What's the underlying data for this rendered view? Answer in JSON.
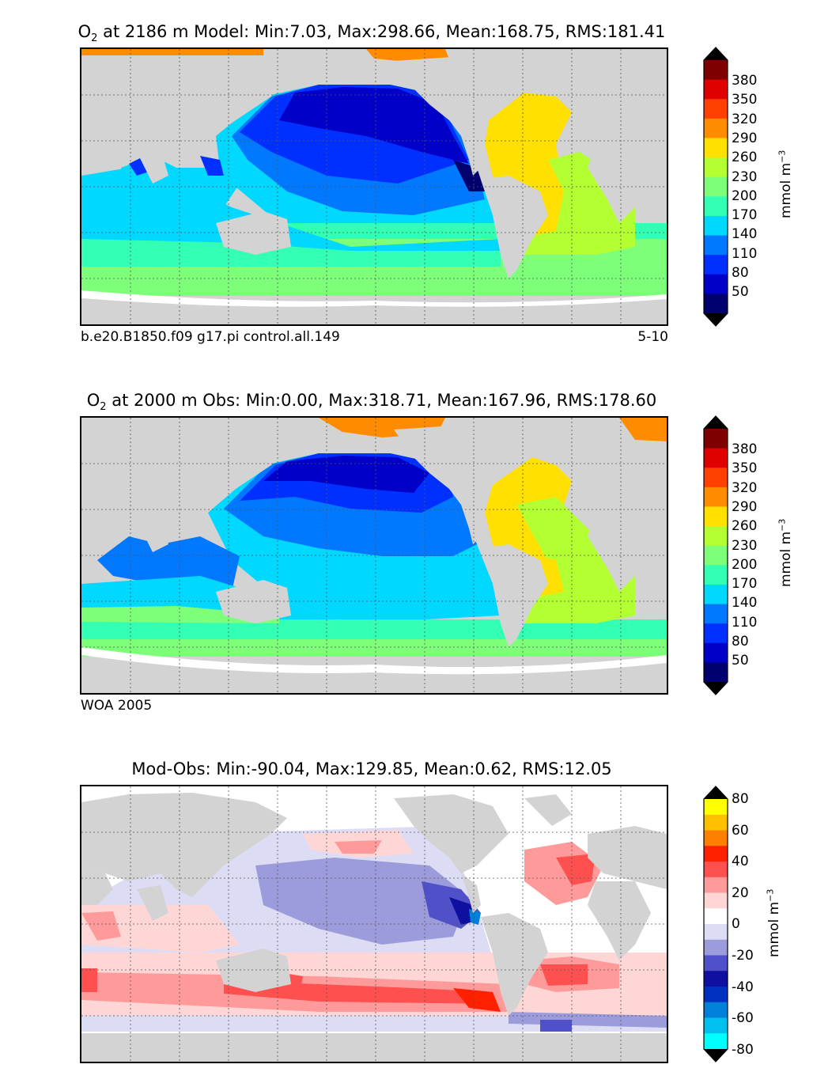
{
  "chart_data": [
    {
      "type": "heatmap",
      "variable": "O",
      "variable_sub": "2",
      "title_rest": " at 2186 m Model: Min:7.03, Max:298.66, Mean:168.75, RMS:181.41",
      "caption_left": "b.e20.B1850.f09 g17.pi control.all.149",
      "caption_right": "5-10",
      "colorbar": {
        "label": "mmol m",
        "label_sup": "−3",
        "ticks": [
          "380",
          "350",
          "320",
          "290",
          "260",
          "230",
          "200",
          "170",
          "140",
          "110",
          "80",
          "50"
        ],
        "colors": [
          "#7f0000",
          "#e00000",
          "#ff4000",
          "#ff8c00",
          "#ffe000",
          "#b4ff32",
          "#7dff7a",
          "#32ffb4",
          "#00d8ff",
          "#0078ff",
          "#0030ff",
          "#0000c8",
          "#00006e"
        ]
      }
    },
    {
      "type": "heatmap",
      "variable": "O",
      "variable_sub": "2",
      "title_rest": " at 2000 m Obs: Min:0.00, Max:318.71, Mean:167.96, RMS:178.60",
      "caption_left": "WOA 2005",
      "caption_right": "",
      "colorbar": {
        "label": "mmol m",
        "label_sup": "−3",
        "ticks": [
          "380",
          "350",
          "320",
          "290",
          "260",
          "230",
          "200",
          "170",
          "140",
          "110",
          "80",
          "50"
        ],
        "colors": [
          "#7f0000",
          "#e00000",
          "#ff4000",
          "#ff8c00",
          "#ffe000",
          "#b4ff32",
          "#7dff7a",
          "#32ffb4",
          "#00d8ff",
          "#0078ff",
          "#0030ff",
          "#0000c8",
          "#00006e"
        ]
      }
    },
    {
      "type": "heatmap",
      "variable": "",
      "variable_sub": "",
      "title_rest": "Mod-Obs: Min:-90.04, Max:129.85, Mean:0.62, RMS:12.05",
      "caption_left": "",
      "caption_right": "",
      "colorbar": {
        "label": "mmol m",
        "label_sup": "−3",
        "ticks": [
          "80",
          "60",
          "40",
          "20",
          "0",
          "-20",
          "-40",
          "-60",
          "-80"
        ],
        "colors": [
          "#ffff00",
          "#ffc000",
          "#ff8000",
          "#ff2000",
          "#ff5050",
          "#ff9a9a",
          "#ffd6d6",
          "#ffffff",
          "#dcdcf5",
          "#9c9cdc",
          "#5050c8",
          "#1010a0",
          "#0030c0",
          "#0080d8",
          "#00c0f0",
          "#00ffff"
        ]
      }
    }
  ]
}
